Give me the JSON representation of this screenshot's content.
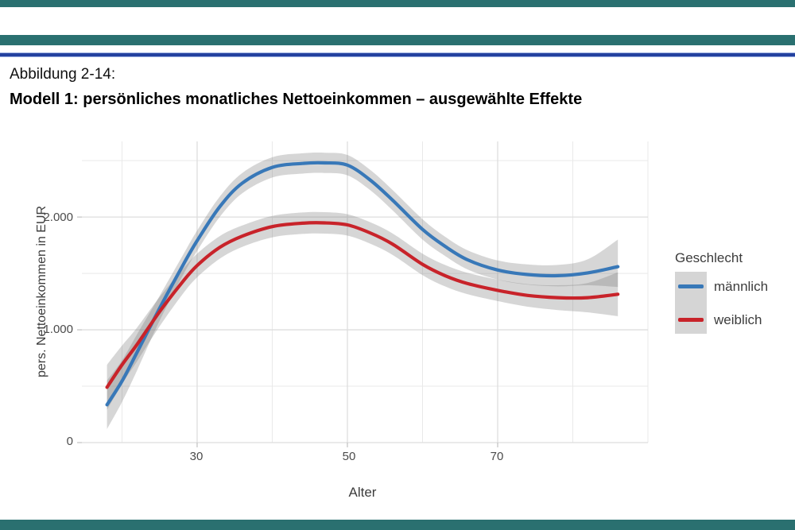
{
  "page": {
    "figure_label": "Abbildung 2-14:",
    "figure_title": "Modell 1: persönliches monatliches Nettoeinkommen – ausgewählte Effekte"
  },
  "colors": {
    "accent_teal": "#2a7070",
    "rule_blue": "#23419f",
    "male_blue": "#3878b8",
    "female_red": "#c8232a",
    "ci_band_gray": "#d2d2d2",
    "legend_key_bg": "#d5d5d5",
    "gridline": "#e4e4e4",
    "axis_text": "#4b4b4b"
  },
  "chart_data": {
    "type": "line",
    "title": "",
    "xlabel": "Alter",
    "ylabel": "pers. Nettoeinkommen in EUR",
    "legend_title": "Geschlecht",
    "legend_position": "right",
    "grid": true,
    "xlim": [
      14.66,
      90
    ],
    "ylim": [
      0,
      2670
    ],
    "x_ticks": [
      30,
      50,
      70
    ],
    "x_tick_labels": [
      "30",
      "50",
      "70"
    ],
    "x_minor": [
      20,
      40,
      60,
      80,
      90
    ],
    "y_ticks": [
      0,
      1000,
      2000
    ],
    "y_tick_labels": [
      "0",
      "1.000",
      "2.000"
    ],
    "y_minor": [
      500,
      1500,
      2500
    ],
    "series": [
      {
        "name": "männlich",
        "color": "#3878b8",
        "points": [
          [
            18,
            335
          ],
          [
            20,
            545
          ],
          [
            22,
            800
          ],
          [
            25,
            1190
          ],
          [
            28,
            1560
          ],
          [
            30,
            1790
          ],
          [
            33,
            2090
          ],
          [
            36,
            2300
          ],
          [
            40,
            2440
          ],
          [
            44,
            2475
          ],
          [
            47,
            2480
          ],
          [
            50,
            2460
          ],
          [
            53,
            2330
          ],
          [
            56,
            2150
          ],
          [
            60,
            1890
          ],
          [
            63,
            1740
          ],
          [
            66,
            1620
          ],
          [
            70,
            1530
          ],
          [
            74,
            1490
          ],
          [
            78,
            1480
          ],
          [
            82,
            1505
          ],
          [
            86,
            1560
          ]
        ]
      },
      {
        "name": "weiblich",
        "color": "#c8232a",
        "points": [
          [
            18,
            490
          ],
          [
            20,
            690
          ],
          [
            22,
            870
          ],
          [
            25,
            1160
          ],
          [
            28,
            1420
          ],
          [
            30,
            1570
          ],
          [
            33,
            1730
          ],
          [
            36,
            1830
          ],
          [
            40,
            1915
          ],
          [
            44,
            1945
          ],
          [
            47,
            1948
          ],
          [
            50,
            1930
          ],
          [
            53,
            1860
          ],
          [
            56,
            1760
          ],
          [
            60,
            1580
          ],
          [
            63,
            1480
          ],
          [
            66,
            1410
          ],
          [
            70,
            1350
          ],
          [
            74,
            1305
          ],
          [
            78,
            1285
          ],
          [
            82,
            1285
          ],
          [
            86,
            1315
          ]
        ]
      }
    ],
    "bands": [
      {
        "name": "männlich_ci",
        "points": [
          [
            18,
            120,
            550
          ],
          [
            20,
            360,
            730
          ],
          [
            22,
            640,
            960
          ],
          [
            25,
            1080,
            1300
          ],
          [
            28,
            1470,
            1650
          ],
          [
            30,
            1700,
            1880
          ],
          [
            33,
            2000,
            2180
          ],
          [
            36,
            2210,
            2390
          ],
          [
            40,
            2350,
            2530
          ],
          [
            44,
            2385,
            2565
          ],
          [
            47,
            2390,
            2570
          ],
          [
            50,
            2370,
            2550
          ],
          [
            53,
            2240,
            2420
          ],
          [
            56,
            2060,
            2240
          ],
          [
            60,
            1800,
            1980
          ],
          [
            63,
            1655,
            1825
          ],
          [
            66,
            1535,
            1705
          ],
          [
            70,
            1445,
            1615
          ],
          [
            74,
            1400,
            1580
          ],
          [
            78,
            1385,
            1575
          ],
          [
            82,
            1395,
            1625
          ],
          [
            86,
            1380,
            1800
          ]
        ]
      },
      {
        "name": "weiblich_ci",
        "points": [
          [
            18,
            290,
            690
          ],
          [
            20,
            520,
            860
          ],
          [
            22,
            720,
            1020
          ],
          [
            25,
            1030,
            1290
          ],
          [
            28,
            1310,
            1530
          ],
          [
            30,
            1465,
            1675
          ],
          [
            33,
            1630,
            1830
          ],
          [
            36,
            1735,
            1925
          ],
          [
            40,
            1820,
            2010
          ],
          [
            44,
            1850,
            2040
          ],
          [
            47,
            1853,
            2043
          ],
          [
            50,
            1835,
            2025
          ],
          [
            53,
            1765,
            1955
          ],
          [
            56,
            1665,
            1855
          ],
          [
            60,
            1485,
            1675
          ],
          [
            63,
            1385,
            1575
          ],
          [
            66,
            1315,
            1505
          ],
          [
            70,
            1255,
            1445
          ],
          [
            74,
            1205,
            1405
          ],
          [
            78,
            1175,
            1395
          ],
          [
            82,
            1155,
            1415
          ],
          [
            86,
            1120,
            1510
          ]
        ]
      }
    ]
  }
}
